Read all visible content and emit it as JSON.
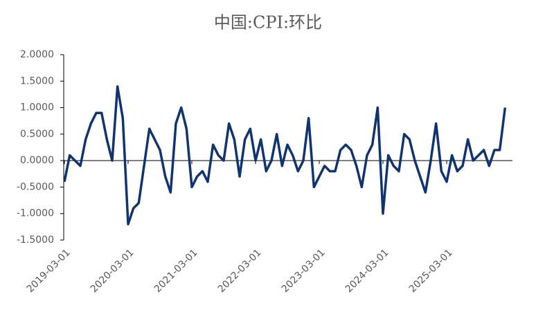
{
  "chart_data": {
    "type": "line",
    "title": "中国:CPI:环比",
    "categories": [
      "2019-03-01",
      null,
      null,
      null,
      null,
      null,
      null,
      null,
      null,
      null,
      null,
      null,
      "2020-03-01",
      null,
      null,
      null,
      null,
      null,
      null,
      null,
      null,
      null,
      null,
      null,
      "2021-03-01",
      null,
      null,
      null,
      null,
      null,
      null,
      null,
      null,
      null,
      null,
      null,
      "2022-03-01",
      null,
      null,
      null,
      null,
      null,
      null,
      null,
      null,
      null,
      null,
      null,
      "2023-03-01",
      null,
      null,
      null,
      null,
      null,
      null,
      null,
      null,
      null,
      null,
      null,
      "2024-03-01",
      null,
      null,
      null,
      null,
      null,
      null,
      null,
      null,
      null,
      null,
      null,
      "2025-03-01",
      null,
      null,
      null,
      null,
      null,
      null,
      null,
      null,
      null,
      null,
      null
    ],
    "series": [
      {
        "color": "#0f3470",
        "values": [
          -0.4,
          0.1,
          0.0,
          -0.1,
          0.4,
          0.7,
          0.9,
          0.9,
          0.4,
          0.0,
          1.4,
          0.8,
          -1.2,
          -0.9,
          -0.8,
          -0.1,
          0.6,
          0.4,
          0.2,
          -0.3,
          -0.6,
          0.7,
          1.0,
          0.6,
          -0.5,
          -0.3,
          -0.2,
          -0.4,
          0.3,
          0.1,
          0.0,
          0.7,
          0.4,
          -0.3,
          0.4,
          0.6,
          0.0,
          0.4,
          -0.2,
          0.0,
          0.5,
          -0.1,
          0.3,
          0.1,
          -0.2,
          0.0,
          0.8,
          -0.5,
          -0.3,
          -0.1,
          -0.2,
          -0.2,
          0.2,
          0.3,
          0.2,
          -0.1,
          -0.5,
          0.1,
          0.3,
          1.0,
          -1.0,
          0.1,
          -0.1,
          -0.2,
          0.5,
          0.4,
          0.0,
          -0.3,
          -0.6,
          0.0,
          0.7,
          -0.2,
          -0.4,
          0.1,
          -0.2,
          -0.1,
          0.4,
          0.0,
          0.1,
          0.2,
          -0.1,
          0.2,
          0.2,
          1.0
        ]
      }
    ],
    "ylim": [
      -1.5,
      2
    ],
    "yticks": [
      {
        "value": -1.5,
        "label": "-1.5000"
      },
      {
        "value": -1,
        "label": "-1.0000"
      },
      {
        "value": -0.5,
        "label": "-0.5000"
      },
      {
        "value": 0,
        "label": "0.0000"
      },
      {
        "value": 0.5,
        "label": "0.5000"
      },
      {
        "value": 1,
        "label": "1.0000"
      },
      {
        "value": 1.5,
        "label": "1.5000"
      },
      {
        "value": 2,
        "label": "2.0000"
      }
    ]
  }
}
